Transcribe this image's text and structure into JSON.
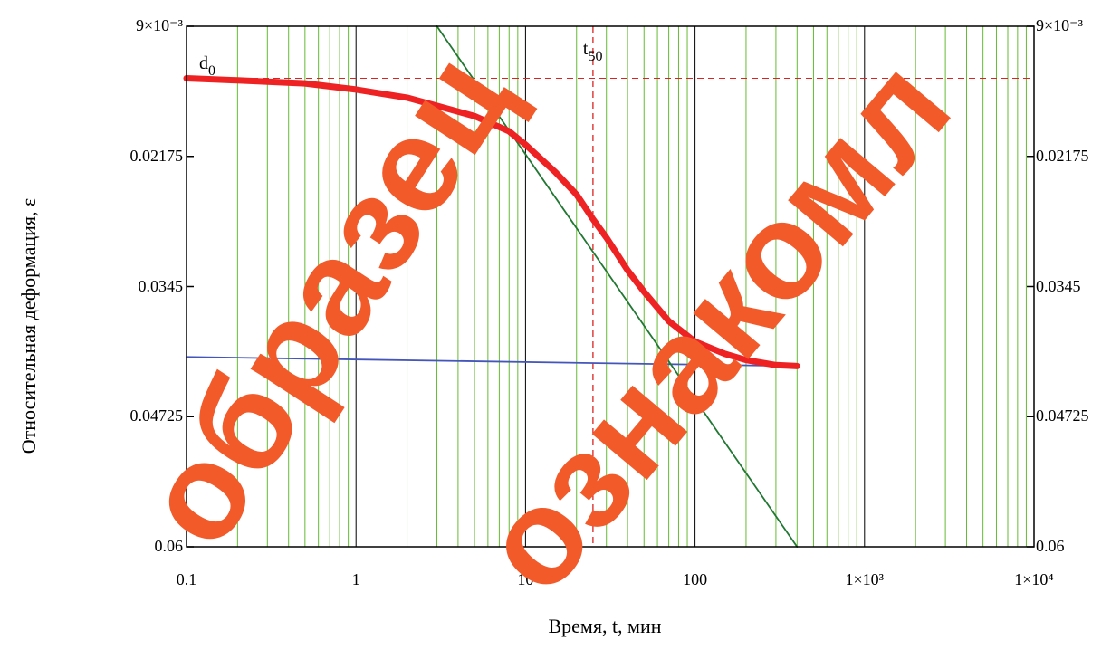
{
  "chart_data": {
    "type": "line",
    "xscale": "log",
    "xlim": [
      0.1,
      10000
    ],
    "ylim": [
      0.009,
      0.06
    ],
    "y_inverted": true,
    "grid": true,
    "xlabel": "Время, t, мин",
    "ylabel": "Относительная деформация, ε",
    "x_ticks": [
      "0.1",
      "1",
      "10",
      "100",
      "1×10³",
      "1×10⁴"
    ],
    "y_ticks_left": [
      "9×10⁻³",
      "0.02175",
      "0.0345",
      "0.04725",
      "0.06"
    ],
    "y_ticks_right": [
      "9×10⁻³",
      "0.02175",
      "0.0345",
      "0.04725",
      "0.06"
    ],
    "annotations": [
      {
        "text": "d0",
        "x": 0.1,
        "y": 0.0141
      },
      {
        "text": "t50",
        "x": 25,
        "y": 0.0095
      }
    ],
    "series": [
      {
        "color": "#ee2222",
        "x": [
          0.1,
          0.2,
          0.5,
          1,
          2,
          5,
          8,
          10,
          15,
          20,
          25,
          30,
          40,
          50,
          70,
          100,
          150,
          200,
          300,
          400
        ],
        "y": [
          0.0141,
          0.0143,
          0.0146,
          0.0152,
          0.016,
          0.0178,
          0.0193,
          0.0206,
          0.0233,
          0.0255,
          0.0279,
          0.0297,
          0.0329,
          0.035,
          0.0379,
          0.0399,
          0.0411,
          0.0417,
          0.0422,
          0.0423
        ]
      },
      {
        "color": "#227733",
        "x": [
          3,
          400
        ],
        "y": [
          0.009,
          0.06
        ]
      },
      {
        "color": "#4455bb",
        "x": [
          0.1,
          400
        ],
        "y": [
          0.0414,
          0.0423
        ]
      }
    ],
    "reference_lines": [
      {
        "orientation": "horizontal",
        "y": 0.0141
      },
      {
        "orientation": "vertical",
        "x": 25
      }
    ]
  },
  "watermark": {
    "words": [
      "образец",
      "ознакомл"
    ],
    "color": "#f25a2a"
  }
}
